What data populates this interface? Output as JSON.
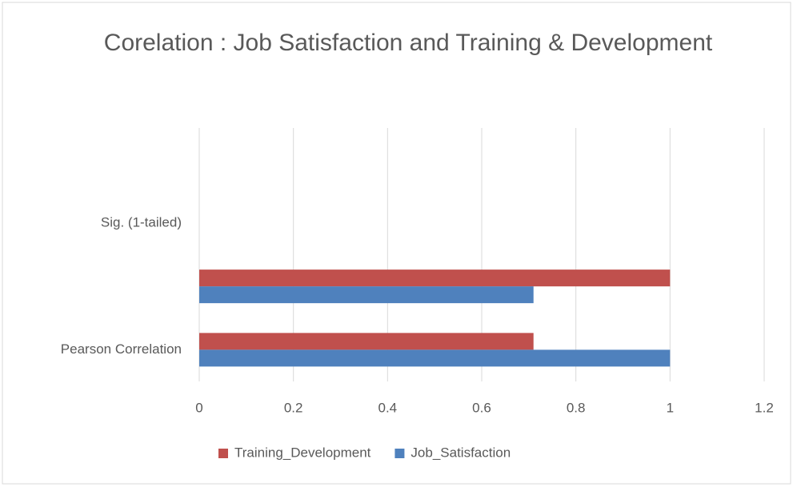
{
  "chart_data": {
    "type": "hbar",
    "title": "Corelation : Job Satisfaction and Training & Development",
    "categories": [
      "Pearson Correlation",
      null,
      "Sig. (1-tailed)",
      null
    ],
    "series": [
      {
        "name": "Training_Development",
        "color": "#c0504d",
        "values": [
          0.71,
          1,
          null,
          null
        ]
      },
      {
        "name": "Job_Satisfaction",
        "color": "#4f81bd",
        "values": [
          1,
          0.71,
          null,
          null
        ]
      }
    ],
    "xlim": [
      0,
      1.2
    ],
    "xticks": [
      0,
      0.2,
      0.4,
      0.6,
      0.8,
      1,
      1.2
    ],
    "grid": true,
    "legend": "bottom"
  }
}
